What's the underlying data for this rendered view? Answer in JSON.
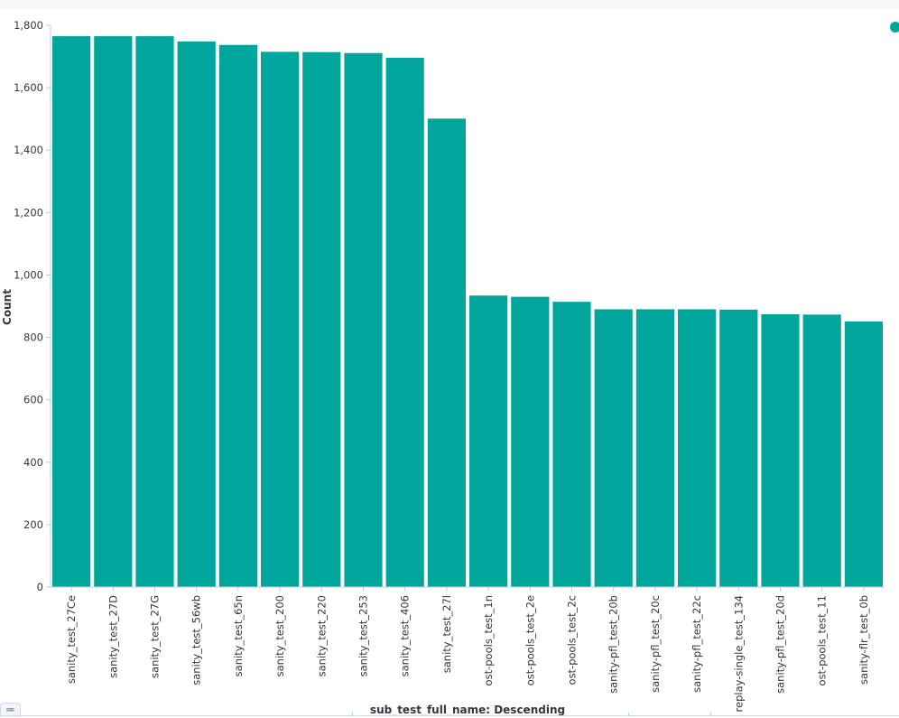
{
  "chart_data": {
    "type": "bar",
    "ylabel": "Count",
    "xlabel": "sub_test_full_name: Descending",
    "ylim": [
      0,
      1800
    ],
    "yticks": [
      0,
      200,
      400,
      600,
      800,
      1000,
      1200,
      1400,
      1600,
      1800
    ],
    "ytick_labels": [
      "0",
      "200",
      "400",
      "600",
      "800",
      "1,000",
      "1,200",
      "1,400",
      "1,600",
      "1,800"
    ],
    "categories": [
      "sanity_test_27Ce",
      "sanity_test_27D",
      "sanity_test_27G",
      "sanity_test_56wb",
      "sanity_test_65n",
      "sanity_test_200",
      "sanity_test_220",
      "sanity_test_253",
      "sanity_test_406",
      "sanity_test_27l",
      "ost-pools_test_1n",
      "ost-pools_test_2e",
      "ost-pools_test_2c",
      "sanity-pfl_test_20b",
      "sanity-pfl_test_20c",
      "sanity-pfl_test_22c",
      "replay-single_test_134",
      "sanity-pfl_test_20d",
      "ost-pools_test_11",
      "sanity-flr_test_0b"
    ],
    "values": [
      1765,
      1765,
      1765,
      1748,
      1737,
      1715,
      1714,
      1711,
      1696,
      1501,
      934,
      930,
      914,
      890,
      890,
      890,
      889,
      874,
      873,
      851
    ],
    "bar_color": "#00a69b",
    "grid": false,
    "legend": "top-right"
  },
  "legend_toggle": {
    "icon": "list-icon",
    "glyph": "≔"
  }
}
